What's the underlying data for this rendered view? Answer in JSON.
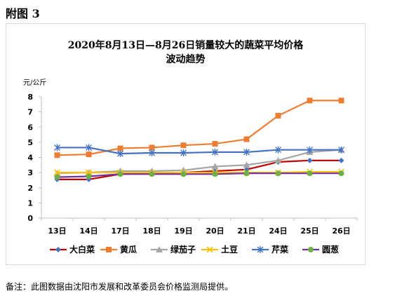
{
  "figure_label": "附图 3",
  "note": "备注：此图数据由沈阳市发展和改革委员会价格监测局提供。",
  "chart_data": {
    "type": "line",
    "title": [
      "2020年8月13日—8月26日销量较大的蔬菜平均价格",
      "波动趋势"
    ],
    "unit": "元/公斤",
    "xlabel": "",
    "ylabel": "元/公斤",
    "categories": [
      "13日",
      "14日",
      "17日",
      "18日",
      "19日",
      "20日",
      "21日",
      "24日",
      "25日",
      "26日"
    ],
    "ylim": [
      0,
      8
    ],
    "yticks": [
      0,
      1,
      2,
      3,
      4,
      5,
      6,
      7,
      8
    ],
    "legend_position": "bottom",
    "grid": false,
    "series": [
      {
        "name": "大白菜",
        "color": "#c00000",
        "marker": "diamond",
        "markerColor": "#4472c4",
        "values": [
          2.55,
          2.55,
          2.9,
          2.95,
          3.0,
          3.1,
          3.2,
          3.7,
          3.8,
          3.8
        ]
      },
      {
        "name": "黄瓜",
        "color": "#ed7d31",
        "marker": "square",
        "markerColor": "#ed7d31",
        "values": [
          4.15,
          4.2,
          4.6,
          4.65,
          4.8,
          4.9,
          5.2,
          6.75,
          7.75,
          7.75
        ]
      },
      {
        "name": "绿茄子",
        "color": "#a5a5a5",
        "marker": "triangle",
        "markerColor": "#a5a5a5",
        "values": [
          2.95,
          3.0,
          3.1,
          3.1,
          3.15,
          3.4,
          3.5,
          3.8,
          4.35,
          4.5
        ]
      },
      {
        "name": "土豆",
        "color": "#ffc000",
        "marker": "x",
        "markerColor": "#ffc000",
        "values": [
          3.0,
          3.0,
          3.0,
          3.0,
          3.0,
          3.0,
          3.0,
          3.0,
          3.05,
          3.05
        ]
      },
      {
        "name": "芹菜",
        "color": "#4472c4",
        "marker": "star",
        "markerColor": "#4472c4",
        "values": [
          4.65,
          4.65,
          4.25,
          4.3,
          4.3,
          4.35,
          4.35,
          4.5,
          4.5,
          4.5
        ]
      },
      {
        "name": "圆葱",
        "color": "#7030a0",
        "marker": "circle",
        "markerColor": "#70ad47",
        "values": [
          2.7,
          2.75,
          2.9,
          2.9,
          2.9,
          2.9,
          2.95,
          2.95,
          2.95,
          2.95
        ]
      }
    ]
  }
}
